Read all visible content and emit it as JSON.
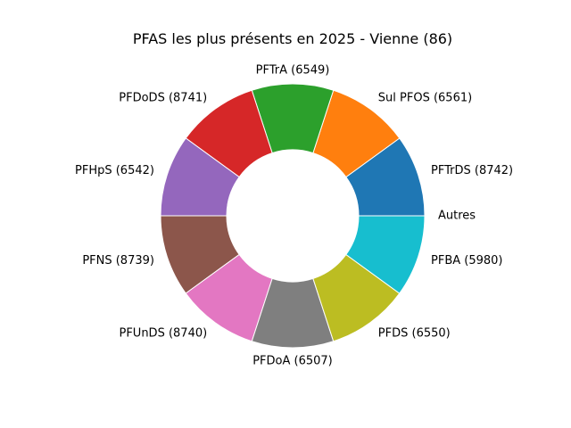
{
  "chart_data": {
    "type": "pie",
    "title": "PFAS les plus présents en 2025 - Vienne (86)",
    "donut": true,
    "start_angle_deg": 0,
    "direction": "counterclockwise",
    "slices": [
      {
        "label": "PFTrDS (8742)",
        "value": 1,
        "color": "#1f77b4"
      },
      {
        "label": "Sul PFOS (6561)",
        "value": 1,
        "color": "#ff7f0e"
      },
      {
        "label": "PFTrA (6549)",
        "value": 1,
        "color": "#2ca02c"
      },
      {
        "label": "PFDoDS (8741)",
        "value": 1,
        "color": "#d62728"
      },
      {
        "label": "PFHpS (6542)",
        "value": 1,
        "color": "#9467bd"
      },
      {
        "label": "PFNS (8739)",
        "value": 1,
        "color": "#8c564b"
      },
      {
        "label": "PFUnDS (8740)",
        "value": 1,
        "color": "#e377c2"
      },
      {
        "label": "PFDoA (6507)",
        "value": 1,
        "color": "#7f7f7f"
      },
      {
        "label": "PFDS (6550)",
        "value": 1,
        "color": "#bcbd22"
      },
      {
        "label": "PFBA (5980)",
        "value": 1,
        "color": "#17becf"
      },
      {
        "label": "Autres",
        "value": 0,
        "color": "#1f77b4"
      }
    ]
  }
}
